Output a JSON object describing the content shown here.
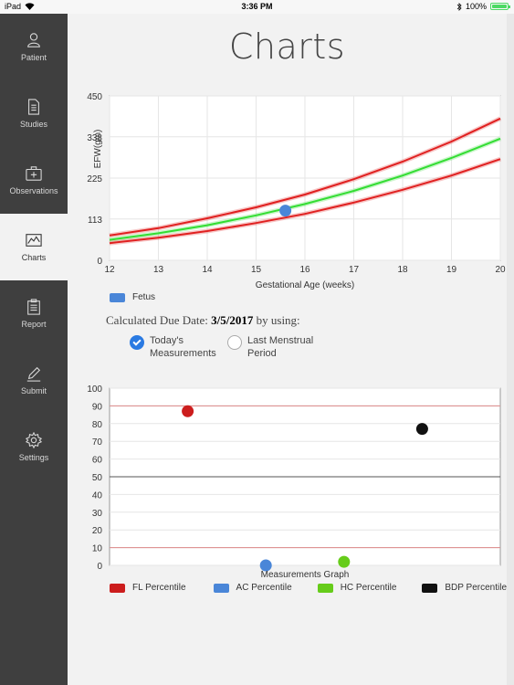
{
  "status_bar": {
    "device": "iPad",
    "time": "3:36 PM",
    "battery": "100%"
  },
  "sidebar": {
    "items": [
      {
        "label": "Patient",
        "icon": "person-icon",
        "active": false
      },
      {
        "label": "Studies",
        "icon": "document-icon",
        "active": false
      },
      {
        "label": "Observations",
        "icon": "medical-kit-icon",
        "active": false
      },
      {
        "label": "Charts",
        "icon": "chart-icon",
        "active": true
      },
      {
        "label": "Report",
        "icon": "clipboard-icon",
        "active": false
      },
      {
        "label": "Submit",
        "icon": "pen-icon",
        "active": false
      },
      {
        "label": "Settings",
        "icon": "gear-icon",
        "active": false
      }
    ]
  },
  "page": {
    "title": "Charts"
  },
  "due_date": {
    "prefix": "Calculated Due Date:",
    "date": "3/5/2017",
    "suffix": "by using:",
    "options": [
      {
        "line1": "Today's",
        "line2": "Measurements",
        "checked": true
      },
      {
        "line1": "Last Menstrual",
        "line2": "Period",
        "checked": false
      }
    ]
  },
  "chart_data": [
    {
      "type": "line",
      "xlabel": "Gestational Age (weeks)",
      "ylabel": "EFW(gm)",
      "xlim": [
        12,
        20
      ],
      "ylim": [
        0,
        450
      ],
      "x_ticks": [
        "12",
        "13",
        "14",
        "15",
        "16",
        "17",
        "18",
        "19",
        "20"
      ],
      "y_ticks": [
        "0",
        "113",
        "225",
        "338",
        "450"
      ],
      "grid": true,
      "series": [
        {
          "x": [
            12,
            13,
            14,
            15,
            16,
            17,
            18,
            19,
            20
          ],
          "y": [
            68,
            88,
            115,
            145,
            180,
            222,
            270,
            325,
            388
          ],
          "color": "#e02020"
        },
        {
          "x": [
            12,
            13,
            14,
            15,
            16,
            17,
            18,
            19,
            20
          ],
          "y": [
            56,
            74,
            96,
            123,
            154,
            190,
            232,
            280,
            333
          ],
          "color": "#33dd33"
        },
        {
          "x": [
            12,
            13,
            14,
            15,
            16,
            17,
            18,
            19,
            20
          ],
          "y": [
            47,
            62,
            80,
            102,
            127,
            158,
            193,
            232,
            277
          ],
          "color": "#e02020"
        }
      ],
      "points": [
        {
          "name": "Fetus",
          "x": 15.6,
          "y": 136,
          "color": "#4a86d8"
        }
      ],
      "legend": [
        "Fetus"
      ]
    },
    {
      "type": "scatter",
      "xlabel": "Measurements Graph",
      "ylim": [
        0,
        100
      ],
      "y_ticks": [
        "0",
        "10",
        "20",
        "30",
        "40",
        "50",
        "60",
        "70",
        "80",
        "90",
        "100"
      ],
      "grid": true,
      "reference_lines": [
        {
          "y": 90,
          "color": "#d88"
        },
        {
          "y": 50,
          "color": "#555"
        },
        {
          "y": 10,
          "color": "#d88"
        }
      ],
      "series": [
        {
          "name": "FL Percentile",
          "value": 87,
          "color": "#cc1d1d",
          "position": 1
        },
        {
          "name": "AC Percentile",
          "value": 0,
          "color": "#4a86d8",
          "position": 2
        },
        {
          "name": "HC Percentile",
          "value": 2,
          "color": "#66cc1a",
          "position": 3
        },
        {
          "name": "BDP Percentile",
          "value": 77,
          "color": "#111111",
          "position": 4
        }
      ]
    }
  ]
}
